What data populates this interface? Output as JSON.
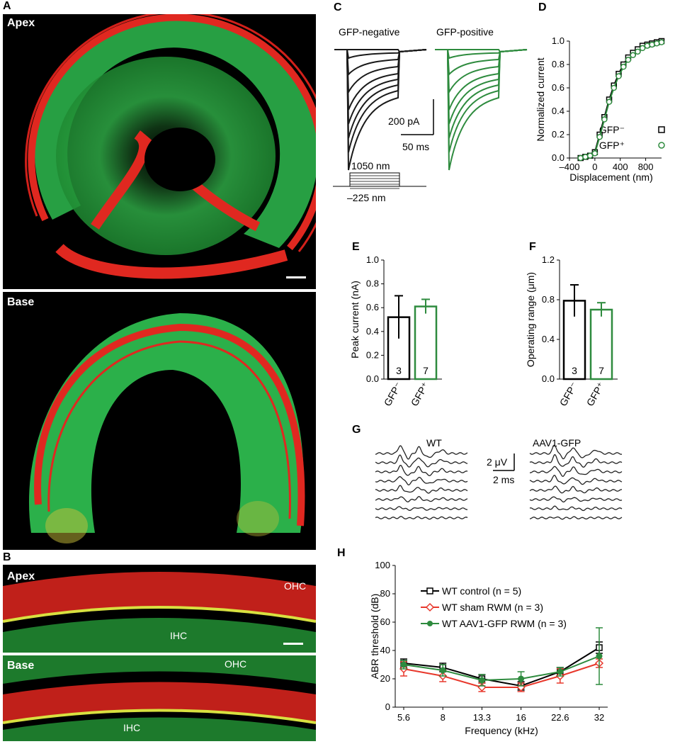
{
  "panels": {
    "A": {
      "letter": "A",
      "top_label": "Apex",
      "bottom_label": "Base"
    },
    "B": {
      "letter": "B",
      "top_label": "Apex",
      "bottom_label": "Base",
      "ohc": "OHC",
      "ihc": "IHC"
    },
    "C": {
      "letter": "C",
      "neg_title": "GFP-negative",
      "pos_title": "GFP-positive",
      "scale_current": "200 pA",
      "scale_time": "50 ms",
      "stim_top": "1050 nm",
      "stim_bottom": "–225 nm"
    },
    "D": {
      "letter": "D"
    },
    "E": {
      "letter": "E"
    },
    "F": {
      "letter": "F"
    },
    "G": {
      "letter": "G",
      "wt_label": "WT",
      "aav_label": "AAV1-GFP",
      "scale_v": "2 μV",
      "scale_t": "2 ms"
    },
    "H": {
      "letter": "H"
    }
  },
  "chart_data": [
    {
      "id": "D",
      "type": "scatter",
      "xlabel": "Displacement (nm)",
      "ylabel": "Normalized current",
      "xlim": [
        -400,
        1050
      ],
      "ylim": [
        0,
        1.0
      ],
      "xticks": [
        "–400",
        "0",
        "400",
        "800"
      ],
      "xtick_values": [
        -400,
        0,
        400,
        800
      ],
      "yticks": [
        "0.0",
        "0.2",
        "0.4",
        "0.6",
        "0.8",
        "1.0"
      ],
      "ytick_values": [
        0,
        0.2,
        0.4,
        0.6,
        0.8,
        1.0
      ],
      "legend_position": "bottom-right",
      "series": [
        {
          "name": "GFP⁻",
          "color": "#000000",
          "marker": "square",
          "x": [
            -225,
            -150,
            -75,
            0,
            75,
            150,
            225,
            300,
            375,
            450,
            525,
            600,
            675,
            750,
            825,
            900,
            975,
            1050
          ],
          "y": [
            0.0,
            0.01,
            0.02,
            0.05,
            0.2,
            0.35,
            0.5,
            0.62,
            0.72,
            0.8,
            0.86,
            0.9,
            0.93,
            0.96,
            0.97,
            0.98,
            0.99,
            1.0
          ]
        },
        {
          "name": "GFP⁺",
          "color": "#2e8b3e",
          "marker": "circle",
          "x": [
            -225,
            -150,
            -75,
            0,
            75,
            150,
            225,
            300,
            375,
            450,
            525,
            600,
            675,
            750,
            825,
            900,
            975,
            1050
          ],
          "y": [
            0.0,
            0.01,
            0.02,
            0.04,
            0.18,
            0.33,
            0.48,
            0.6,
            0.7,
            0.78,
            0.84,
            0.88,
            0.91,
            0.94,
            0.96,
            0.97,
            0.98,
            0.99
          ]
        }
      ]
    },
    {
      "id": "E",
      "type": "bar",
      "ylabel": "Peak current (nA)",
      "ylim": [
        0,
        1.0
      ],
      "yticks": [
        "0.0",
        "0.2",
        "0.4",
        "0.6",
        "0.8",
        "1.0"
      ],
      "ytick_values": [
        0,
        0.2,
        0.4,
        0.6,
        0.8,
        1.0
      ],
      "categories": [
        "GFP⁻",
        "GFP⁺"
      ],
      "values": [
        0.52,
        0.61
      ],
      "errors": [
        0.18,
        0.06
      ],
      "n": [
        "3",
        "7"
      ],
      "colors": [
        "#000000",
        "#2e8b3e"
      ]
    },
    {
      "id": "F",
      "type": "bar",
      "ylabel": "Operating range (μm)",
      "ylim": [
        0,
        1.2
      ],
      "yticks": [
        "0.0",
        "0.4",
        "0.8",
        "1.2"
      ],
      "ytick_values": [
        0,
        0.4,
        0.8,
        1.2
      ],
      "categories": [
        "GFP⁻",
        "GFP⁺"
      ],
      "values": [
        0.79,
        0.7
      ],
      "errors": [
        0.16,
        0.07
      ],
      "n": [
        "3",
        "7"
      ],
      "colors": [
        "#000000",
        "#2e8b3e"
      ]
    },
    {
      "id": "H",
      "type": "line",
      "xlabel": "Frequency (kHz)",
      "ylabel": "ABR threshold (dB)",
      "ylim": [
        0,
        100
      ],
      "yticks": [
        "0",
        "20",
        "40",
        "60",
        "80",
        "100"
      ],
      "ytick_values": [
        0,
        20,
        40,
        60,
        80,
        100
      ],
      "categories": [
        "5.6",
        "8",
        "13.3",
        "16",
        "22.6",
        "32"
      ],
      "legend_position": "top-left",
      "series": [
        {
          "name": "WT control (n = 5)",
          "color": "#000000",
          "marker": "square",
          "values": [
            31,
            28,
            20,
            15,
            25,
            42
          ],
          "errors": [
            3,
            3,
            3,
            3,
            3,
            4
          ]
        },
        {
          "name": "WT sham RWM (n = 3)",
          "color": "#e8382c",
          "marker": "diamond",
          "values": [
            27,
            22,
            14,
            14,
            22,
            31
          ],
          "errors": [
            5,
            4,
            3,
            3,
            5,
            3
          ]
        },
        {
          "name": "WT AAV1-GFP RWM (n = 3)",
          "color": "#2e8b3e",
          "marker": "circle",
          "values": [
            30,
            26,
            19,
            20,
            25,
            36
          ],
          "errors": [
            3,
            4,
            4,
            5,
            3,
            20
          ]
        }
      ]
    }
  ]
}
